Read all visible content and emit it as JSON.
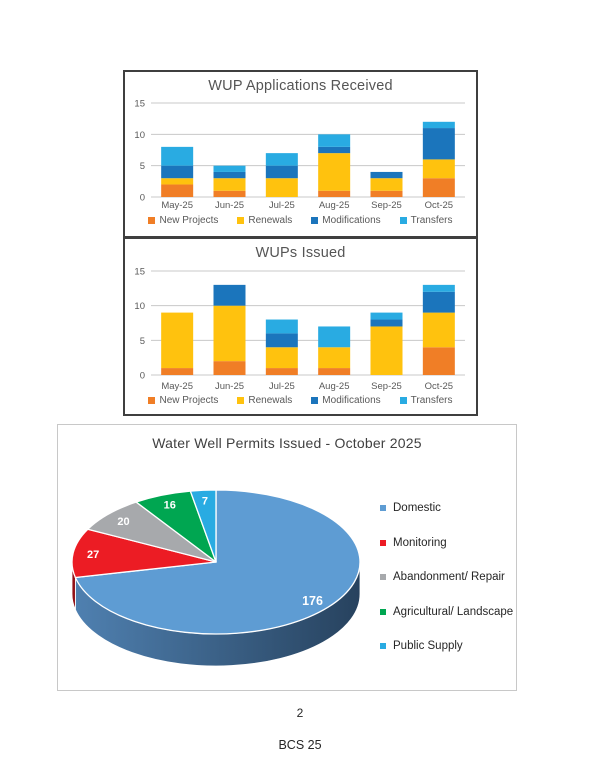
{
  "page": {
    "page_number": "2",
    "footer": "BCS 25"
  },
  "chart_data": [
    {
      "type": "bar",
      "stacked": true,
      "title": "WUP Applications Received",
      "categories": [
        "May-25",
        "Jun-25",
        "Jul-25",
        "Aug-25",
        "Sep-25",
        "Oct-25"
      ],
      "series": [
        {
          "name": "New Projects",
          "color": "#F07E26",
          "values": [
            2,
            1,
            0,
            1,
            1,
            3
          ]
        },
        {
          "name": "Renewals",
          "color": "#FFC20E",
          "values": [
            1,
            2,
            3,
            6,
            2,
            3
          ]
        },
        {
          "name": "Modifications",
          "color": "#1B75BC",
          "values": [
            2,
            1,
            2,
            1,
            1,
            5
          ]
        },
        {
          "name": "Transfers",
          "color": "#29ABE2",
          "values": [
            3,
            1,
            2,
            2,
            0,
            1
          ]
        }
      ],
      "ylim": [
        0,
        15
      ],
      "yticks": [
        0,
        5,
        10,
        15
      ],
      "grid": "horizontal",
      "legend_position": "bottom"
    },
    {
      "type": "bar",
      "stacked": true,
      "title": "WUPs Issued",
      "categories": [
        "May-25",
        "Jun-25",
        "Jul-25",
        "Aug-25",
        "Sep-25",
        "Oct-25"
      ],
      "series": [
        {
          "name": "New Projects",
          "color": "#F07E26",
          "values": [
            1,
            2,
            1,
            1,
            0,
            4
          ]
        },
        {
          "name": "Renewals",
          "color": "#FFC20E",
          "values": [
            8,
            8,
            3,
            3,
            7,
            5
          ]
        },
        {
          "name": "Modifications",
          "color": "#1B75BC",
          "values": [
            0,
            3,
            2,
            0,
            1,
            3
          ]
        },
        {
          "name": "Transfers",
          "color": "#29ABE2",
          "values": [
            0,
            0,
            2,
            3,
            1,
            1
          ]
        }
      ],
      "ylim": [
        0,
        15
      ],
      "yticks": [
        0,
        5,
        10,
        15
      ],
      "grid": "horizontal",
      "legend_position": "bottom"
    },
    {
      "type": "pie",
      "style": "3d",
      "title": "Water Well Permits Issued - October 2025",
      "segments": [
        {
          "label": "Domestic",
          "value": 176,
          "color": "#5E9CD3"
        },
        {
          "label": "Monitoring",
          "value": 27,
          "color": "#EC1C24"
        },
        {
          "label": "Abandonment/ Repair",
          "value": 20,
          "color": "#A7A9AC"
        },
        {
          "label": "Agricultural/ Landscape",
          "value": 16,
          "color": "#00A651"
        },
        {
          "label": "Public Supply",
          "value": 7,
          "color": "#29ABE2"
        }
      ],
      "total": 246,
      "start_angle_deg": 0,
      "direction": "clockwise",
      "data_labels": "values",
      "legend_position": "right"
    }
  ]
}
